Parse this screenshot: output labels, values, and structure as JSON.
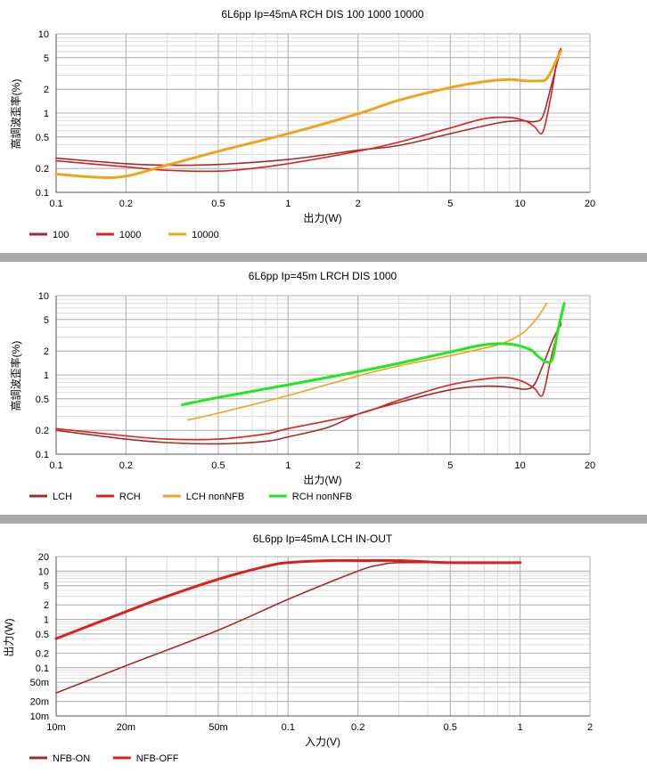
{
  "charts": {
    "chart1": {
      "type": "line",
      "title": "6L6pp Ip=45mA RCH DIS 100 1000 10000",
      "xlabel": "出力(W)",
      "ylabel": "高調波歪率(%)",
      "xlim": [
        0.1,
        20
      ],
      "ylim": [
        0.1,
        10
      ],
      "xticks": [
        "0.1",
        "0.2",
        "0.5",
        "1",
        "2",
        "5",
        "10",
        "20"
      ],
      "yticks": [
        "0.1",
        "0.2",
        "0.5",
        "1",
        "2",
        "5",
        "10"
      ],
      "legend": [
        "100",
        "1000",
        "10000"
      ]
    },
    "chart2": {
      "type": "line",
      "title": "6L6pp Ip=45m LRCH DIS 1000",
      "xlabel": "出力(W)",
      "ylabel": "高調波歪率(%)",
      "xlim": [
        0.1,
        20
      ],
      "ylim": [
        0.1,
        10
      ],
      "xticks": [
        "0.1",
        "0.2",
        "0.5",
        "1",
        "2",
        "5",
        "10",
        "20"
      ],
      "yticks": [
        "0.1",
        "0.2",
        "0.5",
        "1",
        "2",
        "5",
        "10"
      ],
      "legend": [
        "LCH",
        "RCH",
        "LCH nonNFB",
        "RCH nonNFB"
      ]
    },
    "chart3": {
      "type": "line",
      "title": "6L6pp Ip=45mA LCH IN-OUT",
      "xlabel": "入力(V)",
      "ylabel": "出力(W)",
      "xlim": [
        0.01,
        2
      ],
      "ylim": [
        0.01,
        20
      ],
      "xticks": [
        "10m",
        "20m",
        "50m",
        "0.1",
        "0.2",
        "0.5",
        "1",
        "2"
      ],
      "yticks": [
        "10m",
        "20m",
        "50m",
        "0.1",
        "0.2",
        "0.5",
        "1",
        "2",
        "5",
        "10",
        "20"
      ],
      "legend": [
        "NFB-ON",
        "NFB-OFF"
      ]
    }
  },
  "chart_data": [
    {
      "type": "line",
      "title": "6L6pp Ip=45mA RCH DIS 100 1000 10000",
      "xlabel": "出力(W)",
      "ylabel": "高調波歪率(%)",
      "xscale": "log",
      "yscale": "log",
      "xlim": [
        0.1,
        20
      ],
      "ylim": [
        0.1,
        10
      ],
      "grid": true,
      "legend_position": "bottom-left",
      "series": [
        {
          "name": "100",
          "color": "#a52a2a",
          "width": 1.6,
          "points": [
            [
              0.1,
              0.27
            ],
            [
              0.2,
              0.23
            ],
            [
              0.3,
              0.22
            ],
            [
              0.5,
              0.225
            ],
            [
              1,
              0.26
            ],
            [
              2,
              0.34
            ],
            [
              3,
              0.39
            ],
            [
              5,
              0.55
            ],
            [
              8,
              0.75
            ],
            [
              10,
              0.8
            ],
            [
              11.5,
              0.78
            ],
            [
              12.5,
              0.9
            ],
            [
              13.5,
              2.0
            ],
            [
              14.5,
              4.5
            ],
            [
              15,
              6.2
            ]
          ]
        },
        {
          "name": "1000",
          "color": "#dd1f1f",
          "width": 1.6,
          "points": [
            [
              0.1,
              0.25
            ],
            [
              0.2,
              0.21
            ],
            [
              0.3,
              0.19
            ],
            [
              0.5,
              0.185
            ],
            [
              0.7,
              0.2
            ],
            [
              1,
              0.23
            ],
            [
              2,
              0.33
            ],
            [
              3,
              0.43
            ],
            [
              5,
              0.65
            ],
            [
              7,
              0.85
            ],
            [
              9,
              0.88
            ],
            [
              10.5,
              0.8
            ],
            [
              11.5,
              0.68
            ],
            [
              12.5,
              0.57
            ],
            [
              13.5,
              1.5
            ],
            [
              14.5,
              5
            ],
            [
              15,
              6.5
            ]
          ]
        },
        {
          "name": "10000",
          "color": "#f0a31c",
          "width": 3,
          "points": [
            [
              0.1,
              0.17
            ],
            [
              0.15,
              0.155
            ],
            [
              0.2,
              0.16
            ],
            [
              0.3,
              0.22
            ],
            [
              0.5,
              0.33
            ],
            [
              1,
              0.55
            ],
            [
              2,
              0.98
            ],
            [
              3,
              1.45
            ],
            [
              5,
              2.1
            ],
            [
              7,
              2.5
            ],
            [
              9,
              2.65
            ],
            [
              10.5,
              2.55
            ],
            [
              12,
              2.55
            ],
            [
              12.8,
              2.6
            ],
            [
              13.5,
              3.2
            ],
            [
              14.5,
              5
            ],
            [
              15,
              6
            ]
          ]
        }
      ]
    },
    {
      "type": "line",
      "title": "6L6pp Ip=45m LRCH DIS 1000",
      "xlabel": "出力(W)",
      "ylabel": "高調波歪率(%)",
      "xscale": "log",
      "yscale": "log",
      "xlim": [
        0.1,
        20
      ],
      "ylim": [
        0.1,
        10
      ],
      "grid": true,
      "legend_position": "bottom-left",
      "series": [
        {
          "name": "LCH",
          "color": "#a52a2a",
          "width": 1.6,
          "points": [
            [
              0.1,
              0.2
            ],
            [
              0.2,
              0.155
            ],
            [
              0.3,
              0.14
            ],
            [
              0.5,
              0.135
            ],
            [
              0.8,
              0.145
            ],
            [
              1,
              0.165
            ],
            [
              1.5,
              0.22
            ],
            [
              2,
              0.32
            ],
            [
              3,
              0.45
            ],
            [
              5,
              0.65
            ],
            [
              7,
              0.72
            ],
            [
              9,
              0.7
            ],
            [
              10.5,
              0.66
            ],
            [
              11.5,
              0.75
            ],
            [
              12.5,
              1.3
            ],
            [
              14,
              3
            ],
            [
              15,
              4.3
            ]
          ]
        },
        {
          "name": "RCH",
          "color": "#dd1f1f",
          "width": 1.6,
          "points": [
            [
              0.1,
              0.21
            ],
            [
              0.2,
              0.17
            ],
            [
              0.3,
              0.155
            ],
            [
              0.5,
              0.155
            ],
            [
              0.8,
              0.18
            ],
            [
              1,
              0.21
            ],
            [
              2,
              0.32
            ],
            [
              3,
              0.48
            ],
            [
              5,
              0.75
            ],
            [
              8,
              0.92
            ],
            [
              10,
              0.85
            ],
            [
              11.5,
              0.68
            ],
            [
              12.5,
              0.56
            ],
            [
              13.5,
              1.5
            ],
            [
              14.5,
              3.5
            ],
            [
              15,
              4.5
            ]
          ]
        },
        {
          "name": "LCH nonNFB",
          "color": "#f0a31c",
          "width": 1.6,
          "points": [
            [
              0.37,
              0.27
            ],
            [
              0.5,
              0.33
            ],
            [
              1,
              0.55
            ],
            [
              2,
              0.97
            ],
            [
              3,
              1.3
            ],
            [
              5,
              1.75
            ],
            [
              8,
              2.4
            ],
            [
              10,
              3.2
            ],
            [
              11,
              4.1
            ],
            [
              12,
              5.5
            ],
            [
              13,
              8
            ]
          ]
        },
        {
          "name": "RCH nonNFB",
          "color": "#1fe81f",
          "width": 3,
          "points": [
            [
              0.35,
              0.42
            ],
            [
              0.5,
              0.52
            ],
            [
              1,
              0.75
            ],
            [
              2,
              1.1
            ],
            [
              3,
              1.4
            ],
            [
              5,
              1.95
            ],
            [
              7,
              2.4
            ],
            [
              9,
              2.45
            ],
            [
              11,
              2.1
            ],
            [
              12,
              1.7
            ],
            [
              13,
              1.45
            ],
            [
              13.8,
              1.6
            ],
            [
              14.5,
              3.5
            ],
            [
              15.5,
              8
            ]
          ]
        }
      ]
    },
    {
      "type": "line",
      "title": "6L6pp Ip=45mA LCH IN-OUT",
      "xlabel": "入力(V)",
      "ylabel": "出力(W)",
      "xscale": "log",
      "yscale": "log",
      "xlim": [
        0.01,
        2
      ],
      "ylim": [
        0.01,
        20
      ],
      "grid": true,
      "legend_position": "bottom-left",
      "series": [
        {
          "name": "NFB-ON",
          "color": "#a52a2a",
          "width": 1.6,
          "points": [
            [
              0.01,
              0.03
            ],
            [
              0.02,
              0.11
            ],
            [
              0.05,
              0.6
            ],
            [
              0.1,
              2.6
            ],
            [
              0.2,
              10
            ],
            [
              0.25,
              13.5
            ],
            [
              0.3,
              15
            ],
            [
              0.5,
              15
            ],
            [
              1,
              15
            ]
          ]
        },
        {
          "name": "NFB-OFF",
          "color": "#dd1f1f",
          "width": 3,
          "points": [
            [
              0.01,
              0.4
            ],
            [
              0.02,
              1.45
            ],
            [
              0.03,
              3
            ],
            [
              0.05,
              6.8
            ],
            [
              0.08,
              12.5
            ],
            [
              0.1,
              15
            ],
            [
              0.15,
              16.5
            ],
            [
              0.2,
              16.5
            ],
            [
              0.3,
              16.5
            ],
            [
              0.5,
              15
            ],
            [
              1,
              15
            ]
          ]
        }
      ]
    }
  ]
}
